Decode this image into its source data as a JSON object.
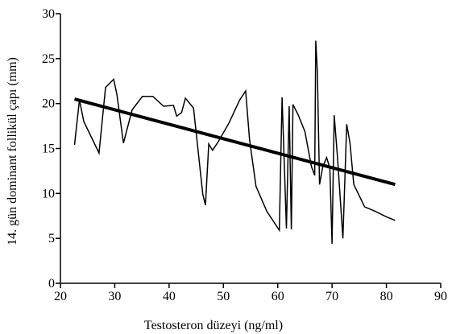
{
  "chart_data": {
    "type": "line",
    "xlabel": "Testosteron düzeyi (ng/ml)",
    "ylabel": "14. gün dominant follikül çapı (mm)",
    "xlim": [
      20,
      90
    ],
    "ylim": [
      0,
      30
    ],
    "xticks": [
      20,
      30,
      40,
      50,
      60,
      70,
      80,
      90
    ],
    "yticks": [
      0,
      5,
      10,
      15,
      20,
      25,
      30
    ],
    "grid": false,
    "legend": "none",
    "series": [
      {
        "style": "thin",
        "x": [
          22.6,
          23.5,
          24.3,
          27.1,
          28.3,
          29.8,
          30.4,
          31.6,
          33.2,
          35.1,
          37.0,
          39.0,
          40.8,
          41.4,
          42.3,
          43.0,
          44.5,
          46.2,
          46.7,
          47.3,
          48.0,
          49.0,
          51.0,
          53.0,
          54.1,
          54.8,
          56.0,
          58.0,
          60.3,
          60.8,
          61.6,
          62.1,
          62.5,
          62.8,
          63.8,
          65.0,
          66.2,
          66.8,
          67.0,
          67.3,
          67.7,
          68.3,
          69.0,
          69.6,
          70.0,
          70.4,
          71.0,
          72.0,
          72.7,
          73.3,
          74.0,
          76.0,
          78.0,
          80.0,
          81.6
        ],
        "y": [
          15.4,
          20.4,
          18.0,
          14.5,
          21.8,
          22.7,
          21.0,
          15.6,
          19.3,
          20.8,
          20.8,
          19.7,
          19.8,
          18.6,
          19.0,
          20.6,
          19.5,
          9.9,
          8.7,
          15.5,
          14.8,
          15.7,
          17.8,
          20.4,
          21.4,
          16.0,
          10.8,
          8.0,
          5.9,
          20.7,
          6.1,
          19.7,
          6.0,
          19.9,
          18.7,
          16.9,
          13.0,
          12.0,
          27.0,
          23.5,
          11.0,
          13.0,
          14.0,
          12.8,
          4.4,
          18.7,
          14.0,
          5.0,
          17.7,
          15.6,
          11.0,
          8.5,
          8.0,
          7.4,
          7.0
        ]
      },
      {
        "style": "thick",
        "x": [
          22.6,
          81.6
        ],
        "y": [
          20.5,
          11.0
        ]
      }
    ]
  }
}
